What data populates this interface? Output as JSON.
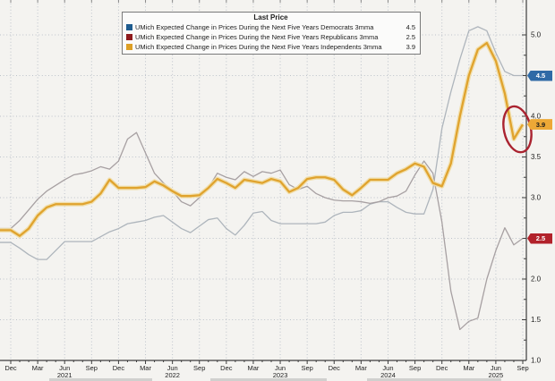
{
  "chart_data": {
    "type": "line",
    "title": "Last Price",
    "xlabel": "",
    "ylabel": "",
    "ylim": [
      1.0,
      5.25
    ],
    "grid": "dotted",
    "legend_position": "top-center",
    "y_ticks": [
      1.0,
      1.5,
      2.0,
      2.5,
      3.0,
      3.5,
      4.0,
      4.5,
      5.0
    ],
    "y_axis_labels": [
      {
        "text": "5.0",
        "at": 5.0
      },
      {
        "text": "4.0",
        "at": 4.0
      },
      {
        "text": "3.5",
        "at": 3.5
      },
      {
        "text": "3.0",
        "at": 3.0
      },
      {
        "text": "2.0",
        "at": 2.0
      },
      {
        "text": "1.5",
        "at": 1.5
      },
      {
        "text": "1.0",
        "at": 1.0
      }
    ],
    "x_tick_every_months": 3,
    "year_label_under_month": "Jun",
    "categories": [
      "Dec 2020",
      "Jan 2021",
      "Feb 2021",
      "Mar 2021",
      "Apr 2021",
      "May 2021",
      "Jun 2021",
      "Jul 2021",
      "Aug 2021",
      "Sep 2021",
      "Oct 2021",
      "Nov 2021",
      "Dec 2021",
      "Jan 2022",
      "Feb 2022",
      "Mar 2022",
      "Apr 2022",
      "May 2022",
      "Jun 2022",
      "Jul 2022",
      "Aug 2022",
      "Sep 2022",
      "Oct 2022",
      "Nov 2022",
      "Dec 2022",
      "Jan 2023",
      "Feb 2023",
      "Mar 2023",
      "Apr 2023",
      "May 2023",
      "Jun 2023",
      "Jul 2023",
      "Aug 2023",
      "Sep 2023",
      "Oct 2023",
      "Nov 2023",
      "Dec 2023",
      "Jan 2024",
      "Feb 2024",
      "Mar 2024",
      "Apr 2024",
      "May 2024",
      "Jun 2024",
      "Jul 2024",
      "Aug 2024",
      "Sep 2024",
      "Oct 2024",
      "Nov 2024",
      "Dec 2024",
      "Jan 2025",
      "Feb 2025",
      "Mar 2025",
      "Apr 2025",
      "May 2025",
      "Jun 2025",
      "Jul 2025",
      "Aug 2025",
      "Sep 2025"
    ],
    "series": [
      {
        "name": "democrats",
        "label": "UMich Expected Change in Prices During the Next Five Years Democrats 3mma",
        "last": "4.5",
        "swatch_color": "#1f5c8f",
        "line_color": "#aeb5bc",
        "values": [
          2.45,
          2.38,
          2.3,
          2.24,
          2.24,
          2.35,
          2.46,
          2.46,
          2.46,
          2.46,
          2.52,
          2.58,
          2.62,
          2.68,
          2.7,
          2.72,
          2.76,
          2.78,
          2.7,
          2.62,
          2.57,
          2.65,
          2.73,
          2.75,
          2.62,
          2.54,
          2.66,
          2.81,
          2.83,
          2.72,
          2.68,
          2.68,
          2.68,
          2.68,
          2.68,
          2.7,
          2.78,
          2.82,
          2.82,
          2.84,
          2.92,
          2.95,
          2.95,
          2.88,
          2.82,
          2.8,
          2.8,
          3.1,
          3.85,
          4.3,
          4.7,
          5.05,
          5.1,
          5.05,
          4.78,
          4.55,
          4.5,
          4.5
        ]
      },
      {
        "name": "republicans",
        "label": "UMich Expected Change in Prices During the Next Five Years Republicans 3mma",
        "last": "2.5",
        "swatch_color": "#8e1a1c",
        "line_color": "#a7a0a2",
        "values": [
          2.62,
          2.72,
          2.85,
          2.98,
          3.08,
          3.15,
          3.22,
          3.28,
          3.3,
          3.33,
          3.38,
          3.35,
          3.45,
          3.72,
          3.8,
          3.55,
          3.3,
          3.18,
          3.08,
          2.95,
          2.9,
          3.0,
          3.12,
          3.3,
          3.25,
          3.22,
          3.32,
          3.26,
          3.32,
          3.3,
          3.34,
          3.16,
          3.1,
          3.14,
          3.05,
          3.0,
          2.97,
          2.96,
          2.96,
          2.95,
          2.93,
          2.95,
          3.0,
          3.02,
          3.08,
          3.28,
          3.45,
          3.3,
          2.7,
          1.85,
          1.38,
          1.48,
          1.52,
          2.0,
          2.35,
          2.63,
          2.42,
          2.5
        ]
      },
      {
        "name": "independents",
        "label": "UMich Expected Change in Prices During the Next Five Years Independents 3mma",
        "last": "3.9",
        "swatch_color": "#dd9f25",
        "line_color": "#e0a32e",
        "halo_color": "#f1dda4",
        "values": [
          2.6,
          2.53,
          2.62,
          2.78,
          2.88,
          2.92,
          2.92,
          2.92,
          2.92,
          2.95,
          3.05,
          3.22,
          3.12,
          3.12,
          3.12,
          3.13,
          3.2,
          3.15,
          3.08,
          3.02,
          3.02,
          3.03,
          3.12,
          3.23,
          3.18,
          3.12,
          3.22,
          3.2,
          3.18,
          3.23,
          3.2,
          3.07,
          3.12,
          3.23,
          3.25,
          3.25,
          3.22,
          3.1,
          3.03,
          3.12,
          3.22,
          3.22,
          3.22,
          3.3,
          3.35,
          3.42,
          3.38,
          3.18,
          3.14,
          3.42,
          4.0,
          4.5,
          4.82,
          4.9,
          4.68,
          4.28,
          3.72,
          3.9
        ]
      }
    ],
    "badges": [
      {
        "value": "4.5",
        "at": 4.5,
        "bg": "#2f6aa6",
        "fg": "#ffffff"
      },
      {
        "value": "3.9",
        "at": 3.9,
        "bg": "#eda836",
        "fg": "#1a1a1a"
      },
      {
        "value": "2.5",
        "at": 2.5,
        "bg": "#b2222b",
        "fg": "#ffffff"
      }
    ],
    "annotation": {
      "type": "ellipse",
      "target": "independents-final-uptick",
      "center_month": "Aug 2025",
      "center_value": 3.84,
      "color": "#aa2330"
    }
  },
  "colors": {
    "background": "#f4f3f0",
    "grid": "#bcc2ca",
    "axis": "#3d3d3d",
    "tick_text": "#1f1f1f"
  }
}
